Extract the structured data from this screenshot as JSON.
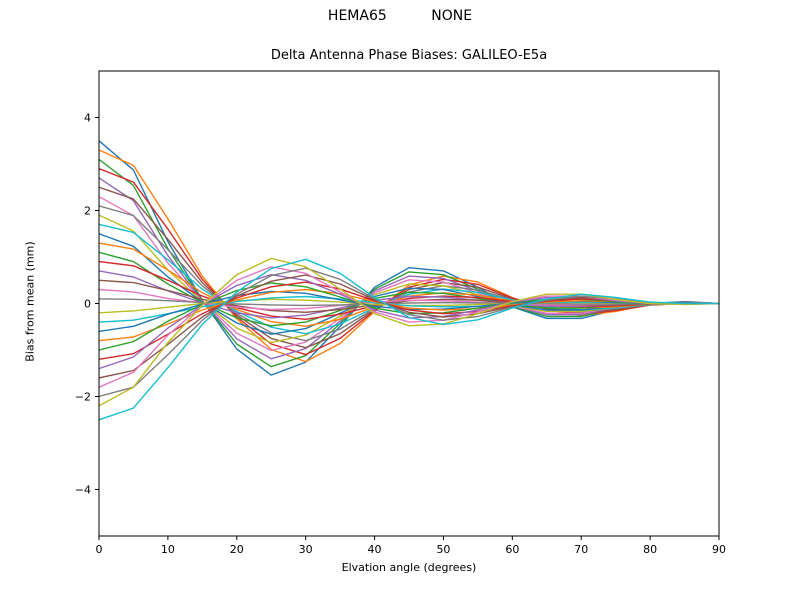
{
  "figure": {
    "background": "#ffffff",
    "suptitle": "HEMA65          NONE",
    "title": "Delta Antenna Phase Biases: GALILEO-E5a",
    "xlabel": "Elvation angle (degrees)",
    "ylabel": "Bias from mean (mm)"
  },
  "chart_data": {
    "type": "line",
    "title": "Delta Antenna Phase Biases: GALILEO-E5a",
    "suptitle": "HEMA65          NONE",
    "xlabel": "Elvation angle (degrees)",
    "ylabel": "Bias from mean (mm)",
    "xlim": [
      0,
      90
    ],
    "ylim": [
      -5,
      5
    ],
    "xticks": [
      0,
      10,
      20,
      30,
      40,
      50,
      60,
      70,
      80,
      90
    ],
    "xticklabels": [
      "0",
      "10",
      "20",
      "30",
      "40",
      "50",
      "60",
      "70",
      "80",
      "90"
    ],
    "yticks": [
      -4,
      -2,
      0,
      2,
      4
    ],
    "yticklabels": [
      "−4",
      "−2",
      "0",
      "2",
      "4"
    ],
    "grid": false,
    "legend": "none",
    "line_width": 1.4,
    "x": [
      0,
      5,
      10,
      15,
      20,
      25,
      30,
      35,
      40,
      45,
      50,
      55,
      60,
      65,
      70,
      75,
      80,
      85,
      90
    ],
    "series": [
      {
        "name": "line-01",
        "color": "#1f77b4",
        "values": [
          3.5,
          2.87,
          1.33,
          0.07,
          -0.98,
          -1.54,
          -1.26,
          -0.49,
          0.35,
          0.77,
          0.7,
          0.35,
          -0.07,
          -0.32,
          -0.32,
          -0.14,
          0.0,
          0.04,
          0.0
        ]
      },
      {
        "name": "line-02",
        "color": "#ff7f0e",
        "values": [
          3.3,
          2.97,
          1.82,
          0.59,
          -0.33,
          -0.99,
          -1.25,
          -0.86,
          -0.17,
          0.4,
          0.59,
          0.46,
          0.13,
          -0.13,
          -0.26,
          -0.17,
          -0.03,
          0.0,
          0.0
        ]
      },
      {
        "name": "line-03",
        "color": "#2ca02c",
        "values": [
          3.1,
          2.54,
          1.18,
          0.06,
          -0.87,
          -1.36,
          -1.12,
          -0.43,
          0.31,
          0.68,
          0.62,
          0.31,
          -0.06,
          -0.28,
          -0.28,
          -0.12,
          0.0,
          0.03,
          0.0
        ]
      },
      {
        "name": "line-04",
        "color": "#d62728",
        "values": [
          2.9,
          2.61,
          1.6,
          0.52,
          -0.29,
          -0.87,
          -1.1,
          -0.75,
          -0.15,
          0.35,
          0.52,
          0.41,
          0.12,
          -0.12,
          -0.23,
          -0.15,
          -0.03,
          0.0,
          0.0
        ]
      },
      {
        "name": "line-05",
        "color": "#9467bd",
        "values": [
          2.7,
          2.21,
          1.03,
          0.05,
          -0.76,
          -1.19,
          -0.97,
          -0.38,
          0.27,
          0.59,
          0.54,
          0.27,
          -0.05,
          -0.24,
          -0.24,
          -0.11,
          0.0,
          0.03,
          0.0
        ]
      },
      {
        "name": "line-06",
        "color": "#8c564b",
        "values": [
          2.5,
          2.25,
          1.38,
          0.45,
          -0.25,
          -0.75,
          -0.95,
          -0.65,
          -0.13,
          0.3,
          0.45,
          0.35,
          0.1,
          -0.1,
          -0.2,
          -0.13,
          -0.03,
          0.0,
          0.0
        ]
      },
      {
        "name": "line-07",
        "color": "#e377c2",
        "values": [
          2.3,
          1.89,
          0.87,
          0.05,
          -0.64,
          -1.01,
          -0.83,
          -0.32,
          0.23,
          0.51,
          0.46,
          0.23,
          -0.05,
          -0.21,
          -0.21,
          -0.09,
          0.0,
          0.02,
          0.0
        ]
      },
      {
        "name": "line-08",
        "color": "#7f7f7f",
        "values": [
          2.1,
          1.89,
          1.16,
          0.38,
          -0.21,
          -0.63,
          -0.8,
          -0.55,
          -0.11,
          0.25,
          0.38,
          0.29,
          0.08,
          -0.08,
          -0.17,
          -0.11,
          -0.02,
          0.0,
          0.0
        ]
      },
      {
        "name": "line-09",
        "color": "#bcbd22",
        "values": [
          1.9,
          1.56,
          0.72,
          0.04,
          -0.53,
          -0.84,
          -0.68,
          -0.27,
          0.19,
          0.42,
          0.38,
          0.19,
          -0.04,
          -0.17,
          -0.17,
          -0.08,
          0.0,
          0.02,
          0.0
        ]
      },
      {
        "name": "line-10",
        "color": "#17becf",
        "values": [
          1.7,
          1.53,
          0.94,
          0.31,
          -0.17,
          -0.51,
          -0.65,
          -0.44,
          -0.09,
          0.2,
          0.31,
          0.24,
          0.07,
          -0.07,
          -0.14,
          -0.09,
          -0.02,
          0.0,
          0.0
        ]
      },
      {
        "name": "line-11",
        "color": "#1f77b4",
        "values": [
          1.5,
          1.23,
          0.57,
          0.03,
          -0.42,
          -0.66,
          -0.54,
          -0.21,
          0.15,
          0.33,
          0.3,
          0.15,
          -0.03,
          -0.14,
          -0.14,
          -0.06,
          0.0,
          0.02,
          0.0
        ]
      },
      {
        "name": "line-12",
        "color": "#ff7f0e",
        "values": [
          1.3,
          1.17,
          0.72,
          0.23,
          -0.13,
          -0.39,
          -0.49,
          -0.34,
          -0.07,
          0.16,
          0.23,
          0.18,
          0.05,
          -0.05,
          -0.1,
          -0.07,
          -0.01,
          0.0,
          0.0
        ]
      },
      {
        "name": "line-13",
        "color": "#2ca02c",
        "values": [
          1.1,
          0.9,
          0.42,
          0.02,
          -0.31,
          -0.48,
          -0.4,
          -0.15,
          0.11,
          0.24,
          0.22,
          0.11,
          -0.02,
          -0.1,
          -0.1,
          -0.04,
          0.0,
          0.01,
          0.0
        ]
      },
      {
        "name": "line-14",
        "color": "#d62728",
        "values": [
          0.9,
          0.81,
          0.5,
          0.16,
          -0.09,
          -0.27,
          -0.34,
          -0.23,
          -0.05,
          0.11,
          0.16,
          0.13,
          0.04,
          -0.04,
          -0.07,
          -0.05,
          -0.01,
          0.0,
          0.0
        ]
      },
      {
        "name": "line-15",
        "color": "#9467bd",
        "values": [
          0.7,
          0.57,
          0.27,
          0.01,
          -0.2,
          -0.31,
          -0.25,
          -0.1,
          0.07,
          0.15,
          0.14,
          0.07,
          -0.01,
          -0.06,
          -0.06,
          -0.03,
          0.0,
          0.01,
          0.0
        ]
      },
      {
        "name": "line-16",
        "color": "#8c564b",
        "values": [
          0.5,
          0.45,
          0.28,
          0.09,
          -0.05,
          -0.15,
          -0.19,
          -0.13,
          -0.03,
          0.06,
          0.09,
          0.07,
          0.02,
          -0.02,
          -0.04,
          -0.03,
          -0.01,
          0.0,
          0.0
        ]
      },
      {
        "name": "line-17",
        "color": "#e377c2",
        "values": [
          0.3,
          0.25,
          0.11,
          0.01,
          -0.08,
          -0.13,
          -0.11,
          -0.04,
          0.03,
          0.07,
          0.06,
          0.03,
          -0.01,
          -0.03,
          -0.03,
          -0.01,
          0.0,
          0.0,
          0.0
        ]
      },
      {
        "name": "line-18",
        "color": "#7f7f7f",
        "values": [
          0.1,
          0.09,
          0.06,
          0.02,
          -0.01,
          -0.03,
          -0.04,
          -0.03,
          -0.01,
          0.01,
          0.02,
          0.01,
          0.0,
          0.0,
          -0.01,
          -0.01,
          0.0,
          0.0,
          0.0
        ]
      },
      {
        "name": "line-19",
        "color": "#bcbd22",
        "values": [
          -0.2,
          -0.16,
          -0.08,
          0.0,
          0.06,
          0.09,
          0.07,
          0.03,
          -0.02,
          -0.04,
          -0.04,
          -0.02,
          0.0,
          0.02,
          0.02,
          0.01,
          0.0,
          0.0,
          0.0
        ]
      },
      {
        "name": "line-20",
        "color": "#17becf",
        "values": [
          -0.4,
          -0.36,
          -0.22,
          -0.07,
          0.04,
          0.12,
          0.15,
          0.1,
          0.02,
          -0.05,
          -0.07,
          -0.06,
          -0.02,
          0.02,
          0.03,
          0.02,
          0.01,
          0.0,
          0.0
        ]
      },
      {
        "name": "line-21",
        "color": "#1f77b4",
        "values": [
          -0.6,
          -0.49,
          -0.23,
          -0.01,
          0.17,
          0.26,
          0.22,
          0.08,
          -0.06,
          -0.13,
          -0.12,
          -0.06,
          0.01,
          0.05,
          0.05,
          0.02,
          0.0,
          -0.01,
          0.0
        ]
      },
      {
        "name": "line-22",
        "color": "#ff7f0e",
        "values": [
          -0.8,
          -0.72,
          -0.44,
          -0.14,
          0.08,
          0.24,
          0.3,
          0.21,
          0.04,
          -0.1,
          -0.14,
          -0.11,
          -0.03,
          0.03,
          0.06,
          0.04,
          0.01,
          0.0,
          0.0
        ]
      },
      {
        "name": "line-23",
        "color": "#2ca02c",
        "values": [
          -1.0,
          -0.82,
          -0.38,
          -0.02,
          0.28,
          0.44,
          0.36,
          0.14,
          -0.1,
          -0.22,
          -0.2,
          -0.1,
          0.02,
          0.09,
          0.09,
          0.04,
          0.0,
          -0.01,
          0.0
        ]
      },
      {
        "name": "line-24",
        "color": "#d62728",
        "values": [
          -1.2,
          -1.08,
          -0.66,
          -0.22,
          0.12,
          0.36,
          0.46,
          0.31,
          0.06,
          -0.14,
          -0.22,
          -0.17,
          -0.05,
          0.05,
          0.1,
          0.06,
          0.01,
          0.0,
          0.0
        ]
      },
      {
        "name": "line-25",
        "color": "#9467bd",
        "values": [
          -1.4,
          -1.15,
          -0.53,
          -0.03,
          0.39,
          0.62,
          0.5,
          0.2,
          -0.14,
          -0.31,
          -0.28,
          -0.14,
          0.03,
          0.13,
          0.13,
          0.06,
          0.0,
          -0.01,
          0.0
        ]
      },
      {
        "name": "line-26",
        "color": "#8c564b",
        "values": [
          -1.6,
          -1.44,
          -0.88,
          -0.29,
          0.16,
          0.48,
          0.61,
          0.42,
          0.08,
          -0.19,
          -0.29,
          -0.22,
          -0.06,
          0.06,
          0.13,
          0.08,
          0.02,
          0.0,
          0.0
        ]
      },
      {
        "name": "line-27",
        "color": "#e377c2",
        "values": [
          -1.8,
          -1.48,
          -0.68,
          -0.04,
          0.5,
          0.79,
          0.65,
          0.25,
          -0.18,
          -0.4,
          -0.36,
          -0.18,
          0.04,
          0.16,
          0.16,
          0.07,
          0.0,
          -0.02,
          0.0
        ]
      },
      {
        "name": "line-28",
        "color": "#7f7f7f",
        "values": [
          -2.0,
          -1.8,
          -1.1,
          -0.36,
          0.2,
          0.6,
          0.76,
          0.52,
          0.1,
          -0.24,
          -0.36,
          -0.28,
          -0.08,
          0.08,
          0.16,
          0.1,
          0.02,
          0.0,
          0.0
        ]
      },
      {
        "name": "line-29",
        "color": "#bcbd22",
        "values": [
          -2.2,
          -1.8,
          -0.84,
          -0.04,
          0.62,
          0.97,
          0.79,
          0.31,
          -0.22,
          -0.48,
          -0.44,
          -0.22,
          0.04,
          0.2,
          0.2,
          0.09,
          0.0,
          -0.02,
          0.0
        ]
      },
      {
        "name": "line-30",
        "color": "#17becf",
        "values": [
          -2.5,
          -2.25,
          -1.38,
          -0.45,
          0.25,
          0.75,
          0.95,
          0.65,
          0.13,
          -0.3,
          -0.45,
          -0.35,
          -0.1,
          0.1,
          0.2,
          0.13,
          0.03,
          0.0,
          0.0
        ]
      }
    ]
  }
}
